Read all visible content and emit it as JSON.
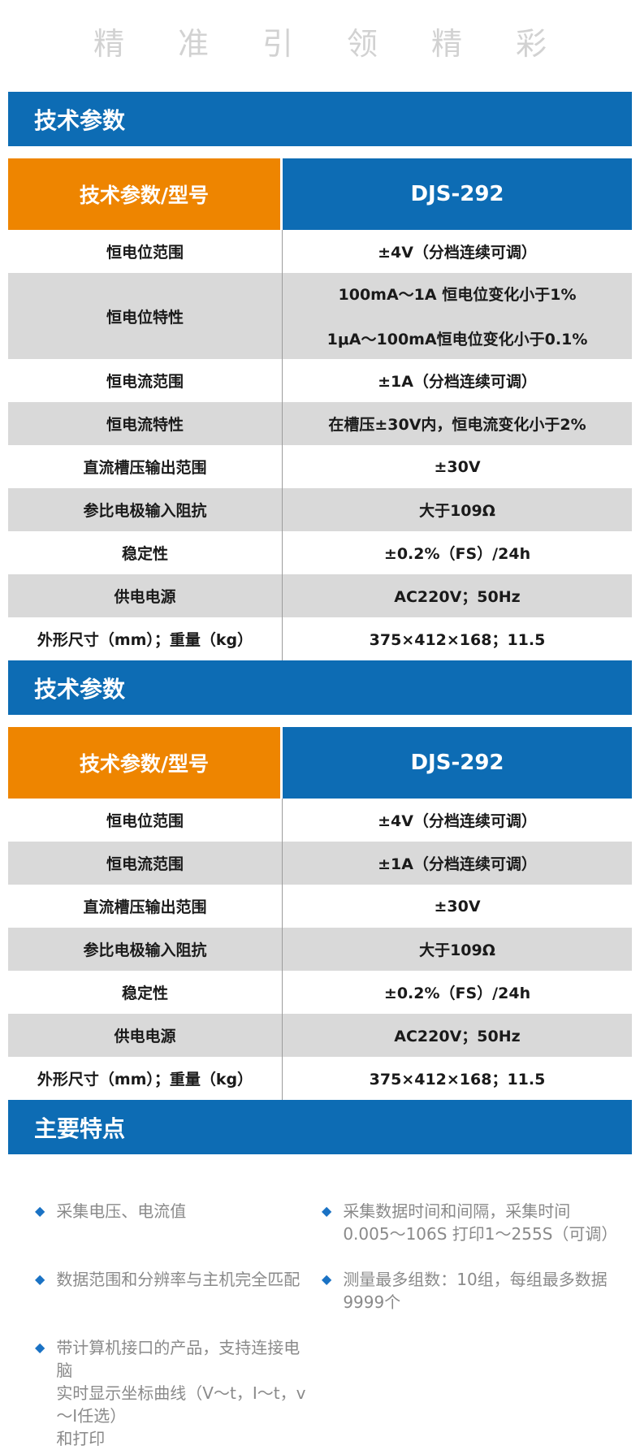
{
  "watermark": {
    "text": "精准引领精彩"
  },
  "colors": {
    "section_blue": "#0d6cb4",
    "header_orange": "#ee8500",
    "row_gray": "#d9d9d9",
    "divider_gray": "#9c9c9c",
    "feature_text_gray": "#8a8a8a",
    "bullet_blue": "#1a72c4",
    "watermark_gray": "#d2d2d2"
  },
  "sections": {
    "tech_params_1": "技术参数",
    "tech_params_2": "技术参数",
    "main_features": "主要特点"
  },
  "table1": {
    "header": {
      "label": "技术参数/型号",
      "model": "DJS-292"
    },
    "rows": [
      {
        "label": "恒电位范围",
        "value": "±4V（分档连续可调）"
      },
      {
        "label": "恒电位特性",
        "value_lines": [
          "100mA～1A 恒电位变化小于1%",
          "1μA～100mA恒电位变化小于0.1%"
        ]
      },
      {
        "label": "恒电流范围",
        "value": "±1A（分档连续可调）"
      },
      {
        "label": "恒电流特性",
        "value": "在槽压±30V内，恒电流变化小于2%"
      },
      {
        "label": "直流槽压输出范围",
        "value": "±30V"
      },
      {
        "label": "参比电极输入阻抗",
        "value": "大于109Ω"
      },
      {
        "label": "稳定性",
        "value": "±0.2%（FS）/24h"
      },
      {
        "label": "供电电源",
        "value": "AC220V；50Hz"
      },
      {
        "label": "外形尺寸（mm）；重量（kg）",
        "value": "375×412×168；11.5"
      }
    ]
  },
  "table2": {
    "header": {
      "label": "技术参数/型号",
      "model": "DJS-292"
    },
    "rows": [
      {
        "label": "恒电位范围",
        "value": "±4V（分档连续可调）"
      },
      {
        "label": "恒电流范围",
        "value": "±1A（分档连续可调）"
      },
      {
        "label": "直流槽压输出范围",
        "value": "±30V"
      },
      {
        "label": "参比电极输入阻抗",
        "value": "大于109Ω"
      },
      {
        "label": "稳定性",
        "value": "±0.2%（FS）/24h"
      },
      {
        "label": "供电电源",
        "value": "AC220V；50Hz"
      },
      {
        "label": "外形尺寸（mm）；重量（kg）",
        "value": "375×412×168；11.5"
      }
    ]
  },
  "features": {
    "bullet_glyph": "◆",
    "left": [
      {
        "lines": [
          "采集电压、电流值"
        ]
      },
      {
        "lines": [
          "数据范围和分辨率与主机完全匹配"
        ]
      },
      {
        "lines": [
          "带计算机接口的产品，支持连接电脑",
          "实时显示坐标曲线（V～t，I～t，v～I任选）",
          "和打印"
        ]
      }
    ],
    "right": [
      {
        "lines": [
          "采集数据时间和间隔，采集时间",
          "0.005～106S 打印1～255S（可调）"
        ]
      },
      {
        "lines": [
          "测量最多组数：10组，每组最多数据",
          "9999个"
        ]
      }
    ]
  }
}
